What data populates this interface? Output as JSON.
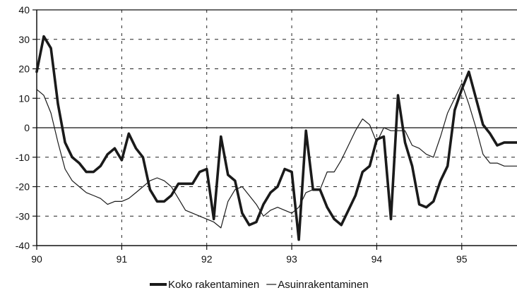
{
  "chart_data": {
    "type": "line",
    "title": "",
    "xlabel": "",
    "ylabel": "",
    "xlim": [
      90,
      95.65
    ],
    "ylim": [
      -40,
      40
    ],
    "grid": true,
    "legend_position": "bottom",
    "x_ticks": [
      "90",
      "91",
      "92",
      "93",
      "94",
      "95"
    ],
    "y_ticks": [
      "40",
      "30",
      "20",
      "10",
      "0",
      "-10",
      "-20",
      "-30",
      "-40"
    ],
    "series": [
      {
        "name": "Koko rakentaminen",
        "style": "thick",
        "color": "#1a1a1a",
        "x": [
          90.0,
          90.083,
          90.167,
          90.25,
          90.333,
          90.417,
          90.5,
          90.583,
          90.667,
          90.75,
          90.833,
          90.917,
          90.958,
          91.0,
          91.083,
          91.167,
          91.25,
          91.333,
          91.417,
          91.5,
          91.583,
          91.667,
          91.75,
          91.833,
          91.917,
          92.0,
          92.083,
          92.167,
          92.25,
          92.333,
          92.417,
          92.5,
          92.583,
          92.667,
          92.75,
          92.833,
          92.917,
          93.0,
          93.083,
          93.167,
          93.25,
          93.333,
          93.417,
          93.5,
          93.583,
          93.667,
          93.75,
          93.833,
          93.917,
          94.0,
          94.083,
          94.167,
          94.25,
          94.333,
          94.417,
          94.5,
          94.583,
          94.667,
          94.75,
          94.833,
          94.917,
          95.0,
          95.083,
          95.167,
          95.25,
          95.333,
          95.417,
          95.5,
          95.583,
          95.65
        ],
        "values": [
          19,
          31,
          27,
          8,
          -5,
          -10,
          -12,
          -15,
          -15,
          -13,
          -9,
          -7,
          -9,
          -11,
          -2,
          -7,
          -10,
          -21,
          -25,
          -25,
          -23,
          -19,
          -19,
          -19,
          -15,
          -14,
          -31,
          -3,
          -16,
          -18,
          -29,
          -33,
          -32,
          -26,
          -22,
          -20,
          -14,
          -15,
          -38,
          -1,
          -21,
          -21,
          -27,
          -31,
          -33,
          -28,
          -23,
          -15,
          -13,
          -4,
          -3,
          -31,
          11,
          -5,
          -13,
          -26,
          -27,
          -25,
          -18,
          -13,
          6,
          13,
          19,
          10,
          1,
          -2,
          -6,
          -5,
          -5,
          -5
        ]
      },
      {
        "name": "Asuinrakentaminen",
        "style": "thin",
        "color": "#1a1a1a",
        "x": [
          90.0,
          90.083,
          90.167,
          90.25,
          90.333,
          90.417,
          90.5,
          90.583,
          90.667,
          90.75,
          90.833,
          90.917,
          91.0,
          91.083,
          91.167,
          91.25,
          91.333,
          91.417,
          91.5,
          91.583,
          91.667,
          91.75,
          91.833,
          91.917,
          92.0,
          92.083,
          92.167,
          92.25,
          92.333,
          92.417,
          92.5,
          92.583,
          92.667,
          92.75,
          92.833,
          92.917,
          93.0,
          93.083,
          93.167,
          93.25,
          93.333,
          93.417,
          93.5,
          93.583,
          93.667,
          93.75,
          93.833,
          93.917,
          94.0,
          94.083,
          94.167,
          94.25,
          94.333,
          94.417,
          94.5,
          94.583,
          94.667,
          94.75,
          94.833,
          94.917,
          95.0,
          95.083,
          95.167,
          95.25,
          95.333,
          95.417,
          95.5,
          95.583,
          95.65
        ],
        "values": [
          13,
          11,
          5,
          -5,
          -14,
          -18,
          -20,
          -22,
          -23,
          -24,
          -26,
          -25,
          -25,
          -24,
          -22,
          -20,
          -18,
          -17,
          -18,
          -20,
          -24,
          -28,
          -29,
          -30,
          -31,
          -32,
          -34,
          -25,
          -21,
          -20,
          -23,
          -26,
          -30,
          -28,
          -27,
          -28,
          -29,
          -27,
          -22,
          -21,
          -21,
          -15,
          -15,
          -11,
          -6,
          -1,
          3,
          1,
          -5,
          0,
          -1,
          -1,
          -1,
          -6,
          -7,
          -9,
          -10,
          -3,
          5,
          10,
          15,
          8,
          0,
          -9,
          -12,
          -12,
          -13,
          -13,
          -13
        ]
      }
    ]
  }
}
